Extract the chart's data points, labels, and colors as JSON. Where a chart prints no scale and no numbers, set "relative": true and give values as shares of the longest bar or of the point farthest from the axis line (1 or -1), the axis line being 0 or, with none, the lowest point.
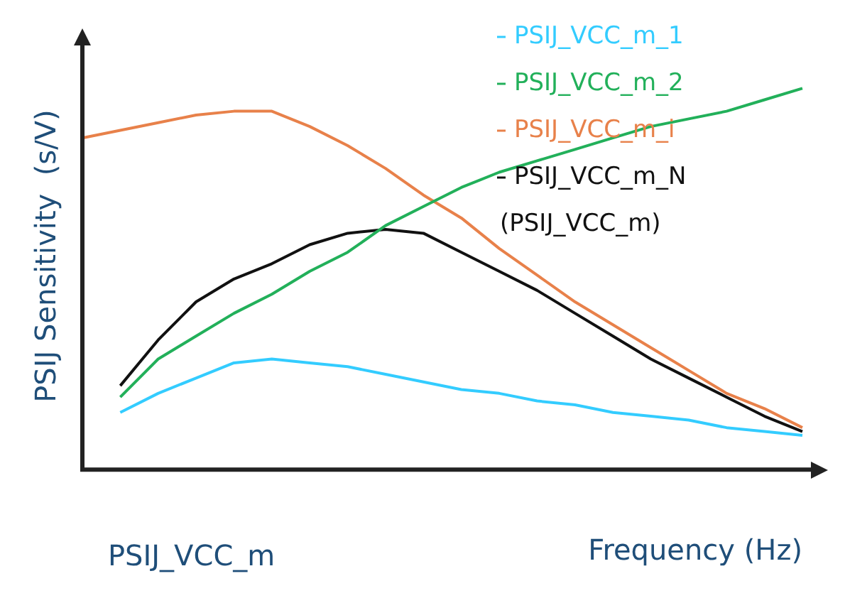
{
  "chart_data": {
    "type": "line",
    "relative": true,
    "ylabel": "PSIJ Sensitivity  (s/V)",
    "xlabel": "Frequency (Hz)",
    "annotations": [
      "PSIJ_VCC_m"
    ],
    "legend": "top right",
    "marker": "none",
    "line_style": "solid",
    "categories": [
      null,
      null,
      null,
      null,
      null,
      null,
      null,
      null,
      null,
      null,
      null,
      null,
      null,
      null,
      null,
      null,
      null,
      null,
      null,
      null
    ],
    "series": [
      {
        "name": "PSIJ_VCC_m_1",
        "color": "#33ccff",
        "values": [
          null,
          0.15,
          0.2,
          0.24,
          0.28,
          0.29,
          0.28,
          0.27,
          0.25,
          0.23,
          0.21,
          0.2,
          0.18,
          0.17,
          0.15,
          0.14,
          0.13,
          0.11,
          0.1,
          0.09
        ]
      },
      {
        "name": "PSIJ_VCC_m_2",
        "color": "#22b05a",
        "values": [
          null,
          0.19,
          0.29,
          0.35,
          0.41,
          0.46,
          0.52,
          0.57,
          0.64,
          0.69,
          0.74,
          0.78,
          0.81,
          0.84,
          0.87,
          0.9,
          0.92,
          0.94,
          0.97,
          1
        ]
      },
      {
        "name": "PSIJ_VCC_m_i",
        "color": "#e8814a",
        "values": [
          0.87,
          0.89,
          0.91,
          0.93,
          0.94,
          0.94,
          0.9,
          0.85,
          0.79,
          0.72,
          0.66,
          0.58,
          0.51,
          0.44,
          0.38,
          0.32,
          0.26,
          0.2,
          0.16,
          0.11
        ]
      },
      {
        "name": "PSIJ_VCC_m_N (PSIJ_VCC_m)",
        "color": "#111111",
        "values": [
          null,
          0.22,
          0.34,
          0.44,
          0.5,
          0.54,
          0.59,
          0.62,
          0.63,
          0.62,
          0.57,
          0.52,
          0.47,
          0.41,
          0.35,
          0.29,
          0.24,
          0.19,
          0.14,
          0.1
        ]
      }
    ]
  }
}
